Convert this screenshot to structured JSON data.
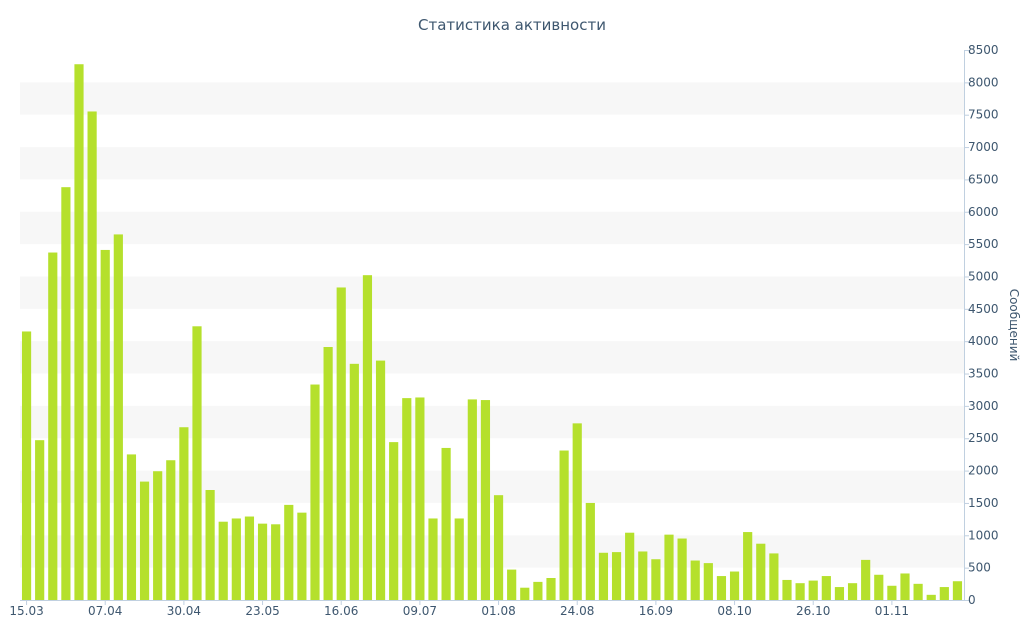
{
  "chart_data": {
    "type": "bar",
    "title": "Статистика активности",
    "ylabel": "Сообщений",
    "xlabel": "",
    "ylim": [
      0,
      8500
    ],
    "yticks": [
      0,
      500,
      1000,
      1500,
      2000,
      2500,
      3000,
      3500,
      4000,
      4500,
      5000,
      5500,
      6000,
      6500,
      7000,
      7500,
      8000,
      8500
    ],
    "y_axis_side": "right",
    "grid": "alternating horizontal bands",
    "bar_color": "#b5e02c",
    "band_color": "#f7f7f7",
    "text_color": "#3e576f",
    "x_tick_labels": [
      {
        "label": "15.03",
        "index": 0
      },
      {
        "label": "07.04",
        "index": 6
      },
      {
        "label": "30.04",
        "index": 12
      },
      {
        "label": "23.05",
        "index": 18
      },
      {
        "label": "16.06",
        "index": 24
      },
      {
        "label": "09.07",
        "index": 30
      },
      {
        "label": "01.08",
        "index": 36
      },
      {
        "label": "24.08",
        "index": 42
      },
      {
        "label": "16.09",
        "index": 48
      },
      {
        "label": "08.10",
        "index": 54
      },
      {
        "label": "26.10",
        "index": 60
      },
      {
        "label": "01.11",
        "index": 66
      }
    ],
    "values": [
      4150,
      2470,
      5370,
      6380,
      8280,
      7550,
      5410,
      5650,
      2250,
      1830,
      1990,
      2160,
      2670,
      4230,
      1700,
      1210,
      1260,
      1290,
      1180,
      1170,
      1470,
      1350,
      3330,
      3910,
      4830,
      3650,
      5020,
      3700,
      2440,
      3120,
      3130,
      1260,
      2350,
      1260,
      3100,
      3090,
      1620,
      470,
      190,
      280,
      340,
      2310,
      2730,
      1500,
      730,
      740,
      1040,
      750,
      630,
      1010,
      950,
      610,
      570,
      370,
      440,
      1050,
      870,
      720,
      310,
      260,
      300,
      370,
      200,
      260,
      620,
      390,
      220,
      410,
      250,
      80,
      200,
      290
    ]
  }
}
